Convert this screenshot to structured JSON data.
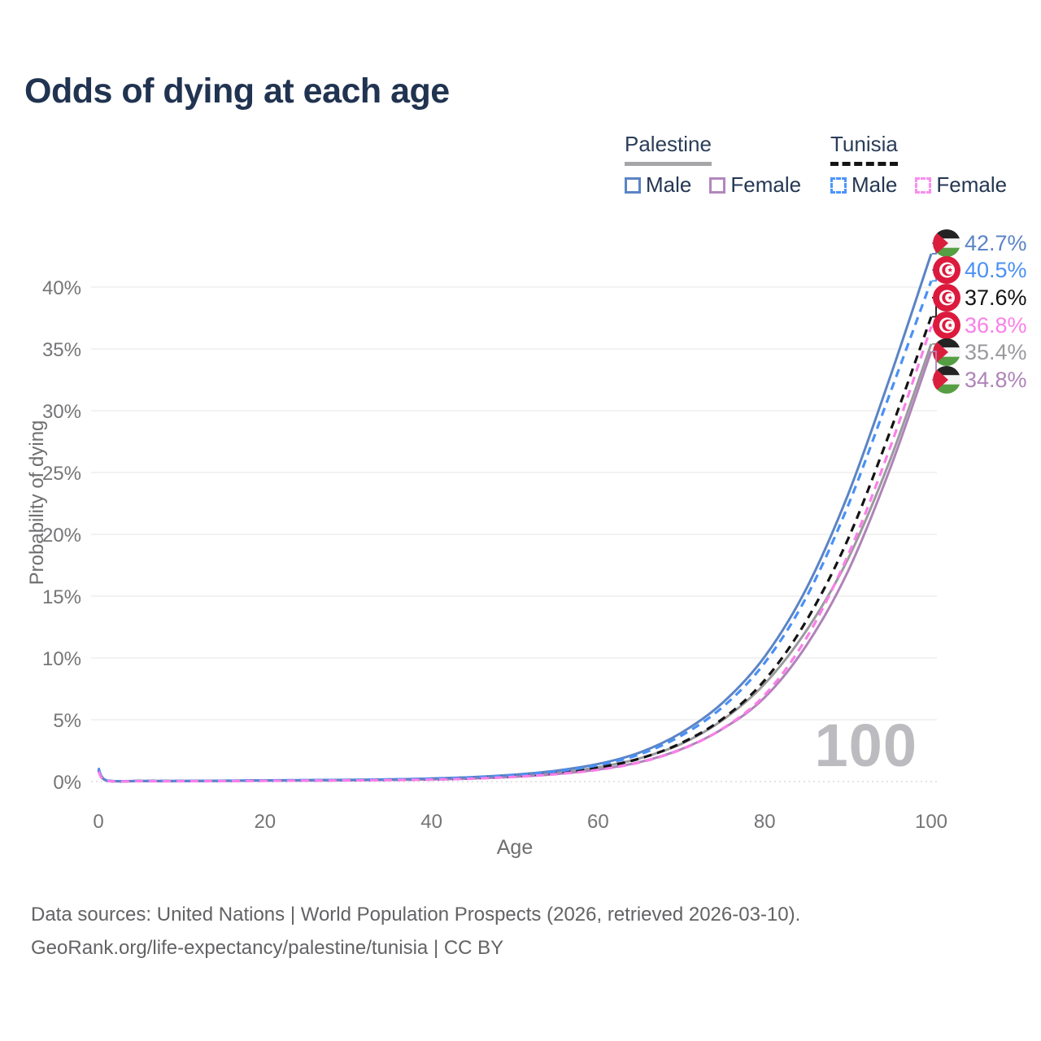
{
  "title": "Odds of dying at each age",
  "legend": {
    "palestine": {
      "name": "Palestine",
      "male": "Male",
      "female": "Female",
      "line_style": "solid",
      "rule_color": "#a6a6a9"
    },
    "tunisia": {
      "name": "Tunisia",
      "male": "Male",
      "female": "Female",
      "line_style": "dashed",
      "rule_color": "#151515"
    }
  },
  "chart_data": {
    "type": "line",
    "title": "Odds of dying at each age",
    "xlabel": "Age",
    "ylabel": "Probability of dying",
    "xlim": [
      0,
      100
    ],
    "ylim": [
      0,
      44
    ],
    "grid": "horizontal-only",
    "legend_position": "top-right",
    "x_ticks": [
      0,
      20,
      40,
      60,
      80,
      100
    ],
    "y_tick_values": [
      0,
      5,
      10,
      15,
      20,
      25,
      30,
      35,
      40
    ],
    "y_tick_labels": [
      "0%",
      "5%",
      "10%",
      "15%",
      "20%",
      "25%",
      "30%",
      "35%",
      "40%"
    ],
    "age_marker": "100",
    "ages": [
      0,
      1,
      5,
      10,
      15,
      20,
      25,
      30,
      35,
      40,
      45,
      50,
      55,
      60,
      65,
      70,
      75,
      80,
      85,
      90,
      95,
      100
    ],
    "series": [
      {
        "id": "palestine-male",
        "country": "Palestine",
        "sex": "Male",
        "flag": "palestine",
        "color": "#5b84c5",
        "dash": null,
        "end_label": "42.7%",
        "label_row": 0,
        "values": [
          1.1,
          0.09,
          0.05,
          0.05,
          0.07,
          0.1,
          0.12,
          0.14,
          0.18,
          0.25,
          0.36,
          0.56,
          0.88,
          1.42,
          2.35,
          3.95,
          6.4,
          10.1,
          15.6,
          23.2,
          32.6,
          42.7
        ]
      },
      {
        "id": "tunisia-male",
        "country": "Tunisia",
        "sex": "Male",
        "flag": "tunisia",
        "color": "#4a90f5",
        "dash": "10 7",
        "end_label": "40.5%",
        "label_row": 1,
        "values": [
          1.0,
          0.08,
          0.04,
          0.05,
          0.06,
          0.09,
          0.11,
          0.13,
          0.17,
          0.23,
          0.33,
          0.52,
          0.82,
          1.33,
          2.2,
          3.72,
          6.05,
          9.6,
          14.9,
          22.3,
          31.3,
          40.5
        ]
      },
      {
        "id": "tunisia-both",
        "country": "Tunisia",
        "sex": "Both sexes",
        "flag": "tunisia",
        "color": "#141414",
        "dash": "10 7",
        "end_label": "37.6%",
        "label_row": 2,
        "values": [
          0.92,
          0.07,
          0.04,
          0.04,
          0.05,
          0.08,
          0.09,
          0.11,
          0.14,
          0.19,
          0.28,
          0.45,
          0.7,
          1.13,
          1.86,
          3.12,
          5.1,
          8.2,
          13.0,
          19.6,
          28.2,
          37.6
        ]
      },
      {
        "id": "tunisia-female",
        "country": "Tunisia",
        "sex": "Female",
        "flag": "tunisia",
        "color": "#fa7fe8",
        "dash": "10 7",
        "end_label": "36.8%",
        "label_row": 3,
        "values": [
          0.82,
          0.06,
          0.03,
          0.03,
          0.04,
          0.06,
          0.08,
          0.09,
          0.12,
          0.16,
          0.24,
          0.38,
          0.6,
          0.95,
          1.55,
          2.6,
          4.3,
          7.0,
          11.6,
          18.3,
          26.9,
          36.8
        ]
      },
      {
        "id": "palestine-both",
        "country": "Palestine",
        "sex": "Both sexes",
        "flag": "palestine",
        "color": "#9a9a9e",
        "dash": null,
        "end_label": "35.4%",
        "label_row": 4,
        "values": [
          1.0,
          0.08,
          0.04,
          0.04,
          0.06,
          0.08,
          0.1,
          0.12,
          0.15,
          0.21,
          0.3,
          0.47,
          0.72,
          1.15,
          1.88,
          3.05,
          5.0,
          7.9,
          12.2,
          18.0,
          25.9,
          35.4
        ]
      },
      {
        "id": "palestine-female",
        "country": "Palestine",
        "sex": "Female",
        "flag": "palestine",
        "color": "#b083b8",
        "dash": null,
        "end_label": "34.8%",
        "label_row": 5,
        "values": [
          0.9,
          0.07,
          0.03,
          0.03,
          0.05,
          0.07,
          0.08,
          0.1,
          0.13,
          0.17,
          0.25,
          0.39,
          0.61,
          0.97,
          1.57,
          2.62,
          4.28,
          6.8,
          11.0,
          17.0,
          25.2,
          34.8
        ]
      }
    ],
    "swatch_colors": {
      "palestine_male": "#5b84c5",
      "palestine_female": "#b287bd",
      "tunisia_male": "#4c95fb",
      "tunisia_female": "#fb8def"
    },
    "flag_colors": {
      "palestine_black": "#232323",
      "palestine_white": "#f4f4f4",
      "palestine_green": "#569e43",
      "palestine_red": "#da1f3d",
      "tunisia_red": "#dc1a3d",
      "tunisia_white": "#ffffff"
    },
    "grid_color": "#ededef",
    "tick_color": "#757578"
  },
  "footer": {
    "line1": "Data sources: United Nations | World Population Prospects (2026, retrieved 2026-03-10).",
    "line2": "GeoRank.org/life-expectancy/palestine/tunisia | CC BY"
  }
}
